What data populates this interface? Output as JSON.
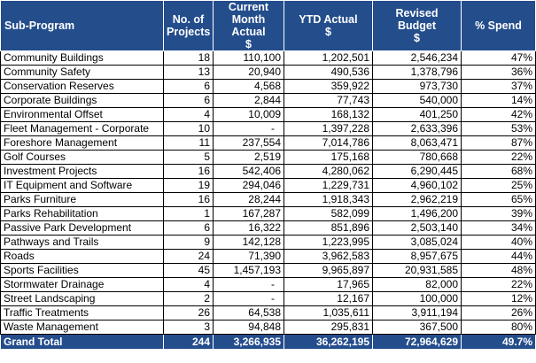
{
  "headers": {
    "sub_program": "Sub-Program",
    "projects": [
      "No. of",
      "Projects"
    ],
    "current_month": [
      "Current",
      "Month Actual",
      "$"
    ],
    "ytd": [
      "YTD Actual",
      "$"
    ],
    "budget": [
      "Revised",
      "Budget",
      "$"
    ],
    "pct_spend": "% Spend"
  },
  "rows": [
    {
      "name": "Community Buildings",
      "projects": "18",
      "current_month": "110,100",
      "ytd": "1,202,501",
      "budget": "2,546,234",
      "pct": "47%"
    },
    {
      "name": "Community Safety",
      "projects": "13",
      "current_month": "20,940",
      "ytd": "490,536",
      "budget": "1,378,796",
      "pct": "36%"
    },
    {
      "name": "Conservation Reserves",
      "projects": "6",
      "current_month": "4,568",
      "ytd": "359,922",
      "budget": "973,730",
      "pct": "37%"
    },
    {
      "name": "Corporate Buildings",
      "projects": "6",
      "current_month": "2,844",
      "ytd": "77,743",
      "budget": "540,000",
      "pct": "14%"
    },
    {
      "name": "Environmental Offset",
      "projects": "4",
      "current_month": "10,009",
      "ytd": "168,132",
      "budget": "401,250",
      "pct": "42%"
    },
    {
      "name": "Fleet Management - Corporate",
      "projects": "10",
      "current_month": "-",
      "ytd": "1,397,228",
      "budget": "2,633,396",
      "pct": "53%"
    },
    {
      "name": "Foreshore Management",
      "projects": "11",
      "current_month": "237,554",
      "ytd": "7,014,786",
      "budget": "8,063,471",
      "pct": "87%"
    },
    {
      "name": "Golf Courses",
      "projects": "5",
      "current_month": "2,519",
      "ytd": "175,168",
      "budget": "780,668",
      "pct": "22%"
    },
    {
      "name": "Investment Projects",
      "projects": "16",
      "current_month": "542,406",
      "ytd": "4,280,062",
      "budget": "6,290,445",
      "pct": "68%"
    },
    {
      "name": "IT Equipment and Software",
      "projects": "19",
      "current_month": "294,046",
      "ytd": "1,229,731",
      "budget": "4,960,102",
      "pct": "25%"
    },
    {
      "name": "Parks Furniture",
      "projects": "16",
      "current_month": "28,244",
      "ytd": "1,918,343",
      "budget": "2,962,219",
      "pct": "65%"
    },
    {
      "name": "Parks Rehabilitation",
      "projects": "1",
      "current_month": "167,287",
      "ytd": "582,099",
      "budget": "1,496,200",
      "pct": "39%"
    },
    {
      "name": "Passive Park Development",
      "projects": "6",
      "current_month": "16,322",
      "ytd": "851,896",
      "budget": "2,503,140",
      "pct": "34%"
    },
    {
      "name": "Pathways and Trails",
      "projects": "9",
      "current_month": "142,128",
      "ytd": "1,223,995",
      "budget": "3,085,024",
      "pct": "40%"
    },
    {
      "name": "Roads",
      "projects": "24",
      "current_month": "71,390",
      "ytd": "3,962,583",
      "budget": "8,957,675",
      "pct": "44%"
    },
    {
      "name": "Sports Facilities",
      "projects": "45",
      "current_month": "1,457,193",
      "ytd": "9,965,897",
      "budget": "20,931,585",
      "pct": "48%"
    },
    {
      "name": "Stormwater Drainage",
      "projects": "4",
      "current_month": "-",
      "ytd": "17,965",
      "budget": "82,000",
      "pct": "22%"
    },
    {
      "name": "Street Landscaping",
      "projects": "2",
      "current_month": "-",
      "ytd": "12,167",
      "budget": "100,000",
      "pct": "12%"
    },
    {
      "name": "Traffic Treatments",
      "projects": "26",
      "current_month": "64,538",
      "ytd": "1,035,611",
      "budget": "3,911,194",
      "pct": "26%"
    },
    {
      "name": "Waste Management",
      "projects": "3",
      "current_month": "94,848",
      "ytd": "295,831",
      "budget": "367,500",
      "pct": "80%"
    }
  ],
  "total": {
    "name": "Grand Total",
    "projects": "244",
    "current_month": "3,266,935",
    "ytd": "36,262,195",
    "budget": "72,964,629",
    "pct": "49.7%"
  },
  "colors": {
    "header_bg": "#244d8c",
    "header_text": "#ffffff",
    "grid_line": "#000000"
  }
}
